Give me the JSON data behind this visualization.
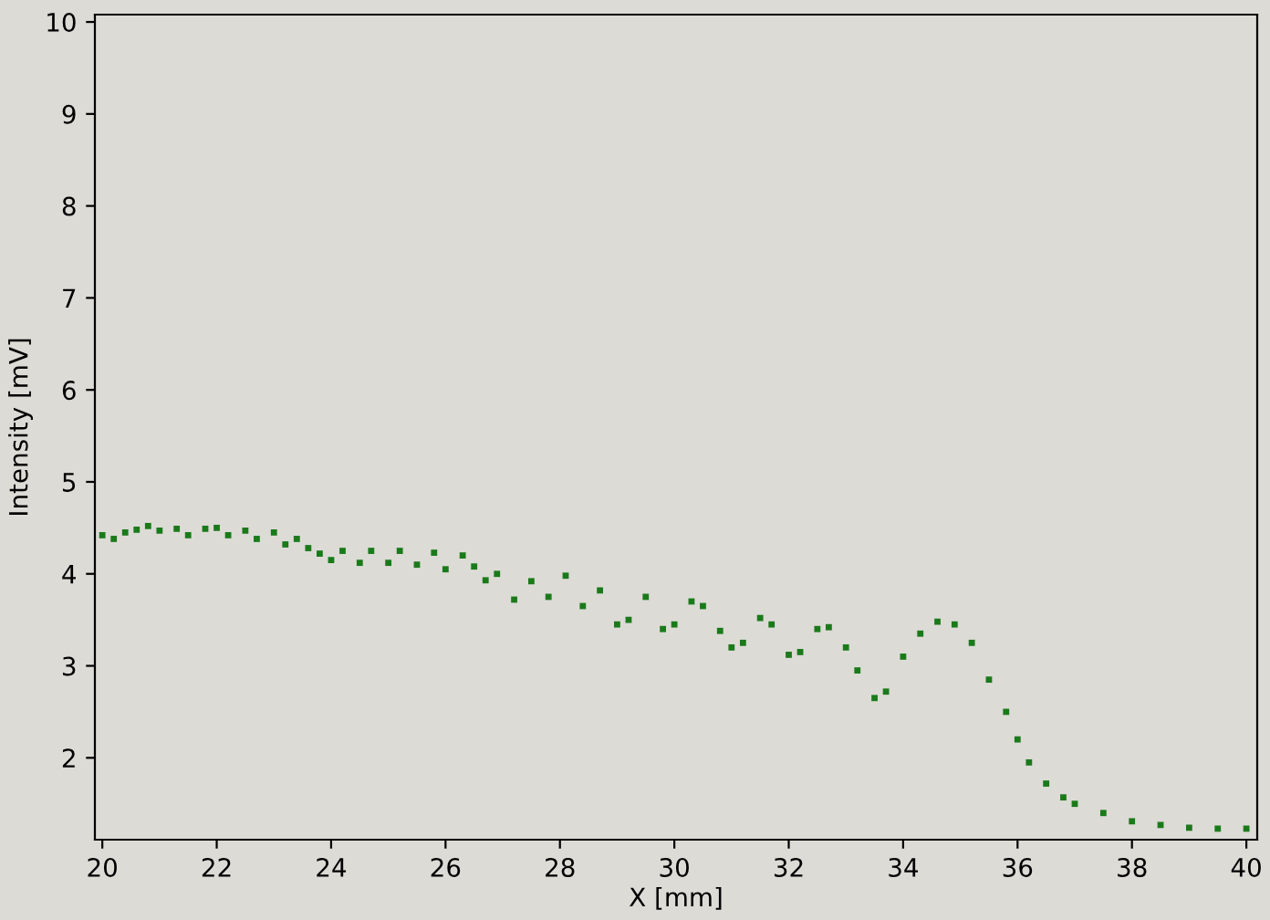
{
  "chart_data": {
    "type": "scatter",
    "xlabel": "X [mm]",
    "ylabel": "Intensity [mV]",
    "marker": "square",
    "xlim": [
      19.87,
      40.19
    ],
    "ylim": [
      1.11,
      10.08
    ],
    "xticks": [
      20,
      22,
      24,
      26,
      28,
      30,
      32,
      34,
      36,
      38,
      40
    ],
    "yticks": [
      2,
      3,
      4,
      5,
      6,
      7,
      8,
      9,
      10
    ],
    "series": [
      {
        "color": "#1a7a1a",
        "x": [
          20.0,
          20.2,
          20.4,
          20.6,
          20.8,
          21.0,
          21.3,
          21.5,
          21.8,
          22.0,
          22.2,
          22.5,
          22.7,
          23.0,
          23.2,
          23.4,
          23.6,
          23.8,
          24.0,
          24.2,
          24.5,
          24.7,
          25.0,
          25.2,
          25.5,
          25.8,
          26.0,
          26.3,
          26.5,
          26.7,
          26.9,
          27.2,
          27.5,
          27.8,
          28.1,
          28.4,
          28.7,
          29.0,
          29.2,
          29.5,
          29.8,
          30.0,
          30.3,
          30.5,
          30.8,
          31.0,
          31.2,
          31.5,
          31.7,
          32.0,
          32.2,
          32.5,
          32.7,
          33.0,
          33.2,
          33.5,
          33.7,
          34.0,
          34.3,
          34.6,
          34.9,
          35.2,
          35.5,
          35.8,
          36.0,
          36.2,
          36.5,
          36.8,
          37.0,
          37.5,
          38.0,
          38.5,
          39.0,
          39.5,
          40.0
        ],
        "values": [
          4.42,
          4.38,
          4.45,
          4.48,
          4.52,
          4.47,
          4.49,
          4.42,
          4.49,
          4.5,
          4.42,
          4.47,
          4.38,
          4.45,
          4.32,
          4.38,
          4.28,
          4.22,
          4.15,
          4.25,
          4.12,
          4.25,
          4.12,
          4.25,
          4.1,
          4.23,
          4.05,
          4.2,
          4.08,
          3.93,
          4.0,
          3.72,
          3.92,
          3.75,
          3.98,
          3.65,
          3.82,
          3.45,
          3.5,
          3.75,
          3.4,
          3.45,
          3.7,
          3.65,
          3.38,
          3.2,
          3.25,
          3.52,
          3.45,
          3.12,
          3.15,
          3.4,
          3.42,
          3.2,
          2.95,
          2.65,
          2.72,
          3.1,
          3.35,
          3.48,
          3.45,
          3.25,
          2.85,
          2.5,
          2.2,
          1.95,
          1.72,
          1.57,
          1.5,
          1.4,
          1.31,
          1.27,
          1.24,
          1.23,
          1.23
        ]
      }
    ]
  }
}
